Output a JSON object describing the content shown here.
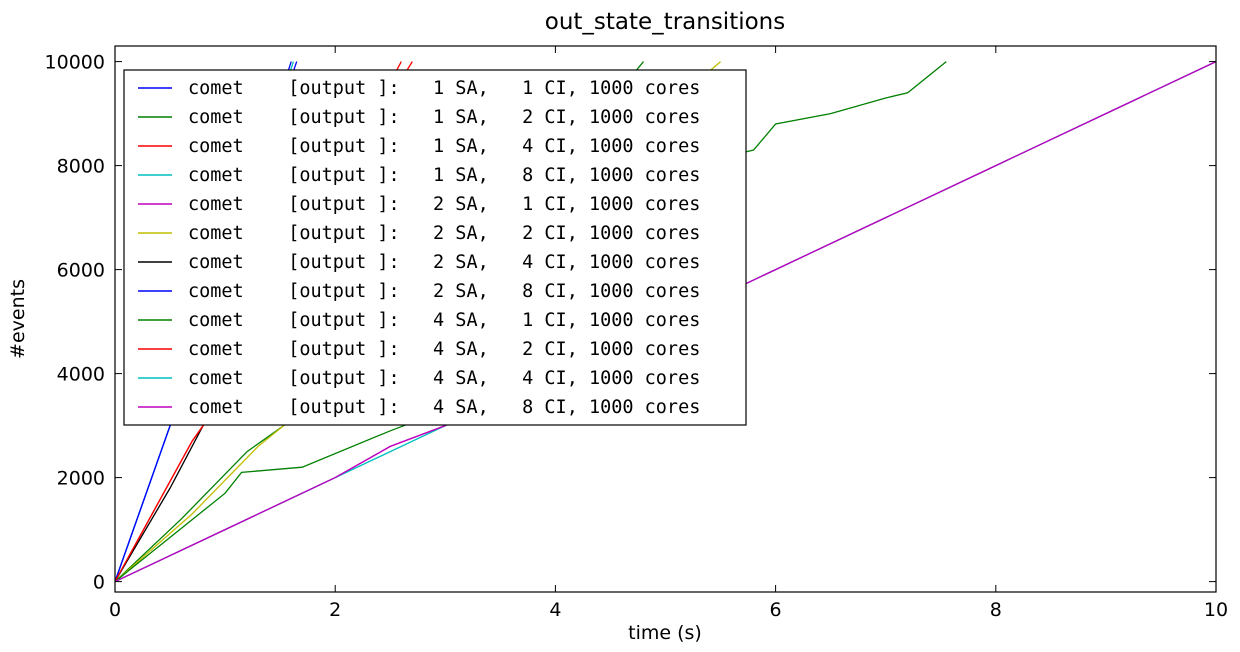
{
  "chart_data": {
    "type": "line",
    "title": "out_state_transitions",
    "xlabel": "time (s)",
    "ylabel": "#events",
    "xlim": [
      0,
      10
    ],
    "ylim": [
      -200,
      10300
    ],
    "xticks": [
      0,
      2,
      4,
      6,
      8,
      10
    ],
    "xtick_labels": [
      "0",
      "2",
      "4",
      "6",
      "8",
      "10"
    ],
    "yticks": [
      0,
      2000,
      4000,
      6000,
      8000,
      10000
    ],
    "ytick_labels": [
      "0",
      "2000",
      "4000",
      "6000",
      "8000",
      "10000"
    ],
    "grid": false,
    "legend_position": "upper-left",
    "series": [
      {
        "name": "comet    [output ]:   1 SA,   1 CI, 1000 cores",
        "color": "#0000ff",
        "x": [
          0,
          0.5,
          1.0,
          1.6
        ],
        "y": [
          0,
          3000,
          6000,
          10000
        ]
      },
      {
        "name": "comet    [output ]:   1 SA,   2 CI, 1000 cores",
        "color": "#008000",
        "x": [
          0,
          0.6,
          1.2,
          2.0,
          2.6,
          3.2,
          4.8
        ],
        "y": [
          0,
          1200,
          2500,
          3700,
          4700,
          5900,
          10000
        ]
      },
      {
        "name": "comet    [output ]:   1 SA,   4 CI, 1000 cores",
        "color": "#ff0000",
        "x": [
          0,
          0.7,
          0.8,
          1.3,
          2.0,
          2.6
        ],
        "y": [
          0,
          2700,
          3000,
          5000,
          7600,
          10000
        ]
      },
      {
        "name": "comet    [output ]:   1 SA,   8 CI, 1000 cores",
        "color": "#00bfbf",
        "x": [
          0,
          0.5,
          1.0,
          1.62
        ],
        "y": [
          0,
          3000,
          6000,
          10000
        ]
      },
      {
        "name": "comet    [output ]:   2 SA,   1 CI, 1000 cores",
        "color": "#bf00bf",
        "x": [
          0,
          1.0,
          2.0,
          2.5,
          3.0,
          4.0,
          5.0,
          6.0,
          7.0,
          8.0,
          9.0,
          10.0
        ],
        "y": [
          0,
          1000,
          2000,
          2600,
          3000,
          4000,
          5000,
          6000,
          7000,
          8000,
          9000,
          10000
        ]
      },
      {
        "name": "comet    [output ]:   2 SA,   2 CI, 1000 cores",
        "color": "#bfbf00",
        "x": [
          0,
          0.7,
          1.3,
          2.0,
          3.0,
          4.0,
          5.5
        ],
        "y": [
          0,
          1300,
          2600,
          3800,
          5600,
          7300,
          10000
        ]
      },
      {
        "name": "comet    [output ]:   2 SA,   4 CI, 1000 cores",
        "color": "#000000",
        "x": [
          0,
          0.5,
          0.8,
          1.2
        ],
        "y": [
          0,
          1800,
          3000,
          4600
        ]
      },
      {
        "name": "comet    [output ]:   2 SA,   8 CI, 1000 cores",
        "color": "#0000ff",
        "x": [
          0,
          0.5,
          1.0,
          1.65
        ],
        "y": [
          0,
          3000,
          6000,
          10000
        ]
      },
      {
        "name": "comet    [output ]:   4 SA,   1 CI, 1000 cores",
        "color": "#008000",
        "x": [
          0,
          1.0,
          1.15,
          1.7,
          2.5,
          3.0,
          4.0,
          4.7,
          5.6,
          5.8,
          6.0,
          6.5,
          7.0,
          7.2,
          7.55
        ],
        "y": [
          0,
          1700,
          2100,
          2200,
          2900,
          3300,
          5800,
          7800,
          8200,
          8300,
          8800,
          9000,
          9300,
          9400,
          10000
        ]
      },
      {
        "name": "comet    [output ]:   4 SA,   2 CI, 1000 cores",
        "color": "#ff0000",
        "x": [
          0,
          0.7,
          0.8,
          1.3,
          2.0,
          2.7
        ],
        "y": [
          0,
          2700,
          3000,
          5000,
          7600,
          10000
        ]
      },
      {
        "name": "comet    [output ]:   4 SA,   4 CI, 1000 cores",
        "color": "#00bfbf",
        "x": [
          0,
          1.0,
          2.0,
          3.0,
          4.0,
          5.0,
          6.0,
          7.0,
          8.0,
          9.0,
          10.0
        ],
        "y": [
          0,
          1000,
          2000,
          3000,
          4000,
          5000,
          6000,
          7000,
          8000,
          9000,
          10000
        ]
      },
      {
        "name": "comet    [output ]:   4 SA,   8 CI, 1000 cores",
        "color": "#bf00bf",
        "x": [
          0,
          1.0,
          2.0,
          2.5,
          3.0,
          4.0,
          5.0,
          6.0,
          7.0,
          8.0,
          9.0,
          10.0
        ],
        "y": [
          0,
          1000,
          2000,
          2600,
          3000,
          4000,
          5000,
          6000,
          7000,
          8000,
          9000,
          10000
        ]
      }
    ]
  }
}
